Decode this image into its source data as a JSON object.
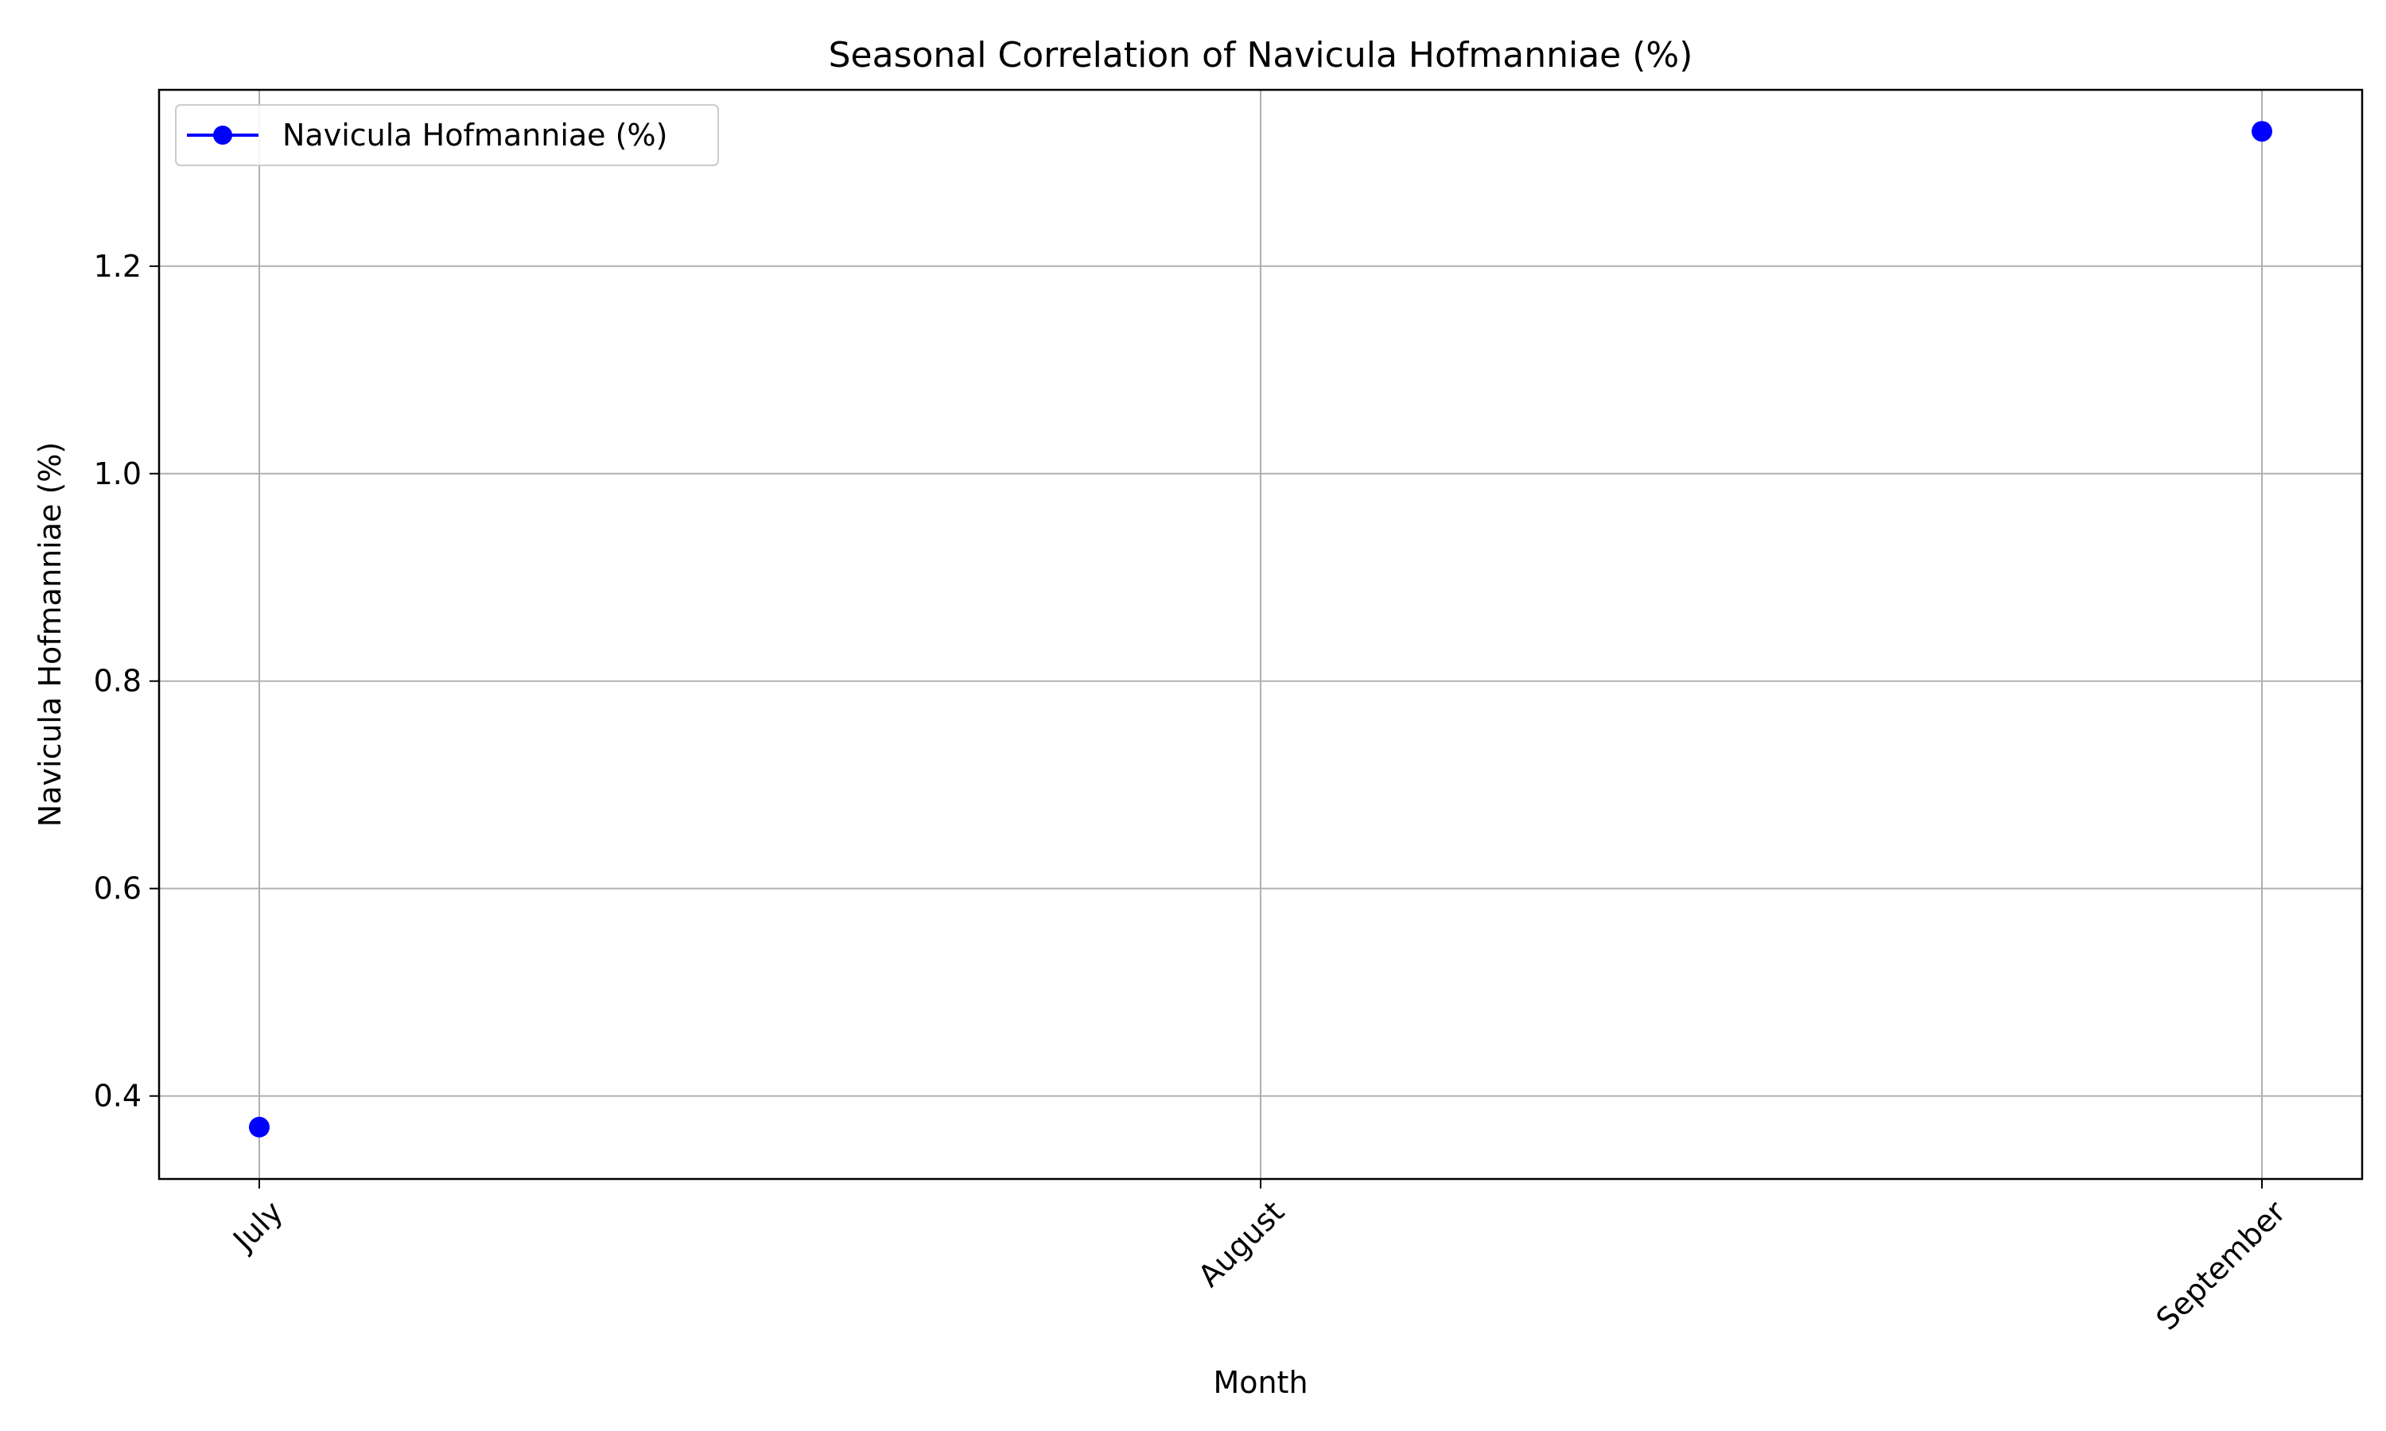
{
  "chart_data": {
    "type": "line",
    "title": "Seasonal Correlation of Navicula Hofmanniae (%)",
    "xlabel": "Month",
    "ylabel": "Navicula Hofmanniae (%)",
    "categories": [
      "July",
      "August",
      "September"
    ],
    "series": [
      {
        "name": "Navicula Hofmanniae (%)",
        "x": [
          "July",
          "September"
        ],
        "values": [
          0.37,
          1.33
        ],
        "color": "#0000ff",
        "marker": "circle"
      }
    ],
    "ylim": [
      0.32,
      1.37
    ],
    "yticks": [
      0.4,
      0.6,
      0.8,
      1.0,
      1.2
    ],
    "ytick_labels": [
      "0.4",
      "0.6",
      "0.8",
      "1.0",
      "1.2"
    ],
    "xtick_rotation": -45,
    "grid": true,
    "legend": "top-left"
  }
}
